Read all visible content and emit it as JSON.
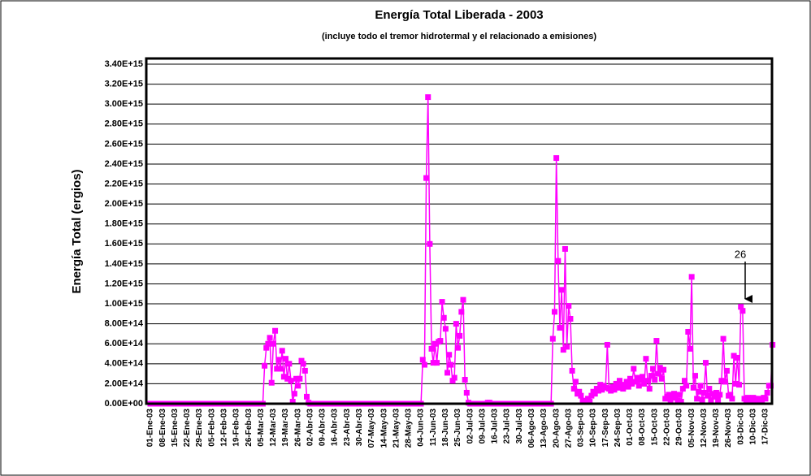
{
  "chart_data": {
    "type": "line",
    "title": "Energía Total Liberada - 2003",
    "subtitle": "(incluye todo el tremor hidrotermal y el relacionado a emisiones)",
    "y_label": "Energía Total (ergios)",
    "annotation": "26",
    "color": "#ff00ff",
    "grid": true,
    "ylim": [
      0,
      3400000000000000.0
    ],
    "yticks": [
      {
        "value": 0,
        "label": "0.00E+00"
      },
      {
        "value": 200000000000000.0,
        "label": "2.00E+14"
      },
      {
        "value": 400000000000000.0,
        "label": "4.00E+14"
      },
      {
        "value": 600000000000000.0,
        "label": "6.00E+14"
      },
      {
        "value": 800000000000000.0,
        "label": "8.00E+14"
      },
      {
        "value": 1000000000000000.0,
        "label": "1.00E+15"
      },
      {
        "value": 1200000000000000.0,
        "label": "1.20E+15"
      },
      {
        "value": 1400000000000000.0,
        "label": "1.40E+15"
      },
      {
        "value": 1600000000000000.0,
        "label": "1.60E+15"
      },
      {
        "value": 1800000000000000.0,
        "label": "1.80E+15"
      },
      {
        "value": 2000000000000000.0,
        "label": "2.00E+15"
      },
      {
        "value": 2200000000000000.0,
        "label": "2.20E+15"
      },
      {
        "value": 2400000000000000.0,
        "label": "2.40E+15"
      },
      {
        "value": 2600000000000000.0,
        "label": "2.60E+15"
      },
      {
        "value": 2800000000000000.0,
        "label": "2.80E+15"
      },
      {
        "value": 3000000000000000.0,
        "label": "3.00E+15"
      },
      {
        "value": 3200000000000000.0,
        "label": "3.20E+15"
      },
      {
        "value": 3400000000000000.0,
        "label": "3.40E+15"
      }
    ],
    "categories": [
      "01-Ene-03",
      null,
      null,
      null,
      null,
      null,
      null,
      "08-Ene-03",
      null,
      null,
      null,
      null,
      null,
      null,
      "15-Ene-03",
      null,
      null,
      null,
      null,
      null,
      null,
      "22-Ene-03",
      null,
      null,
      null,
      null,
      null,
      null,
      "29-Ene-03",
      null,
      null,
      null,
      null,
      null,
      null,
      "05-Feb-03",
      null,
      null,
      null,
      null,
      null,
      null,
      "12-Feb-03",
      null,
      null,
      null,
      null,
      null,
      null,
      "19-Feb-03",
      null,
      null,
      null,
      null,
      null,
      null,
      "26-Feb-03",
      null,
      null,
      null,
      null,
      null,
      null,
      "05-Mar-03",
      null,
      null,
      null,
      null,
      null,
      null,
      "12-Mar-03",
      null,
      null,
      null,
      null,
      null,
      null,
      "19-Mar-03",
      null,
      null,
      null,
      null,
      null,
      null,
      "26-Mar-03",
      null,
      null,
      null,
      null,
      null,
      null,
      "02-Abr-03",
      null,
      null,
      null,
      null,
      null,
      null,
      "09-Abr-03",
      null,
      null,
      null,
      null,
      null,
      null,
      "16-Abr-03",
      null,
      null,
      null,
      null,
      null,
      null,
      "23-Abr-03",
      null,
      null,
      null,
      null,
      null,
      null,
      "30-Abr-03",
      null,
      null,
      null,
      null,
      null,
      null,
      "07-May-03",
      null,
      null,
      null,
      null,
      null,
      null,
      "14-May-03",
      null,
      null,
      null,
      null,
      null,
      null,
      "21-May-03",
      null,
      null,
      null,
      null,
      null,
      null,
      "28-May-03",
      null,
      null,
      null,
      null,
      null,
      null,
      "04-Jun-03",
      null,
      null,
      null,
      null,
      null,
      null,
      "11-Jun-03",
      null,
      null,
      null,
      null,
      null,
      null,
      "18-Jun-03",
      null,
      null,
      null,
      null,
      null,
      null,
      "25-Jun-03",
      null,
      null,
      null,
      null,
      null,
      null,
      "02-Jul-03",
      null,
      null,
      null,
      null,
      null,
      null,
      "09-Jul-03",
      null,
      null,
      null,
      null,
      null,
      null,
      "16-Jul-03",
      null,
      null,
      null,
      null,
      null,
      null,
      "23-Jul-03",
      null,
      null,
      null,
      null,
      null,
      null,
      "30-Jul-03",
      null,
      null,
      null,
      null,
      null,
      null,
      "06-Ago-03",
      null,
      null,
      null,
      null,
      null,
      null,
      "13-Ago-03",
      null,
      null,
      null,
      null,
      null,
      null,
      "20-Ago-03",
      null,
      null,
      null,
      null,
      null,
      null,
      "27-Ago-03",
      null,
      null,
      null,
      null,
      null,
      null,
      "03-Sep-03",
      null,
      null,
      null,
      null,
      null,
      null,
      "10-Sep-03",
      null,
      null,
      null,
      null,
      null,
      null,
      "17-Sep-03",
      null,
      null,
      null,
      null,
      null,
      null,
      "24-Sep-03",
      null,
      null,
      null,
      null,
      null,
      null,
      "01-Oct-03",
      null,
      null,
      null,
      null,
      null,
      null,
      "08-Oct-03",
      null,
      null,
      null,
      null,
      null,
      null,
      "15-Oct-03",
      null,
      null,
      null,
      null,
      null,
      null,
      "22-Oct-03",
      null,
      null,
      null,
      null,
      null,
      null,
      "29-Oct-03",
      null,
      null,
      null,
      null,
      null,
      null,
      "05-Nov-03",
      null,
      null,
      null,
      null,
      null,
      null,
      "12-Nov-03",
      null,
      null,
      null,
      null,
      null,
      null,
      "19-Nov-03",
      null,
      null,
      null,
      null,
      null,
      null,
      "26-Nov-03",
      null,
      null,
      null,
      null,
      null,
      null,
      "03-Dic-03",
      null,
      null,
      null,
      null,
      null,
      null,
      "10-Dic-03",
      null,
      null,
      null,
      null,
      null,
      null,
      "17-Dic-03",
      null,
      null,
      null,
      null
    ],
    "values": [
      0,
      0,
      0,
      0,
      0,
      0,
      0,
      0,
      0,
      0,
      0,
      0,
      0,
      0,
      0,
      0,
      0,
      0,
      0,
      0,
      0,
      0,
      0,
      0,
      0,
      0,
      0,
      0,
      0,
      0,
      0,
      0,
      0,
      0,
      0,
      0,
      0,
      0,
      0,
      0,
      0,
      0,
      0,
      0,
      0,
      0,
      0,
      0,
      0,
      0,
      0,
      0,
      0,
      0,
      0,
      0,
      0,
      0,
      0,
      0,
      0,
      0,
      0,
      0,
      0,
      380000000000000.0,
      560000000000000.0,
      600000000000000.0,
      660000000000000.0,
      210000000000000.0,
      600000000000000.0,
      730000000000000.0,
      350000000000000.0,
      440000000000000.0,
      350000000000000.0,
      530000000000000.0,
      270000000000000.0,
      450000000000000.0,
      250000000000000.0,
      400000000000000.0,
      230000000000000.0,
      20000000000000.0,
      100000000000000.0,
      250000000000000.0,
      180000000000000.0,
      250000000000000.0,
      430000000000000.0,
      400000000000000.0,
      330000000000000.0,
      70000000000000.0,
      10000000000000.0,
      0,
      0,
      0,
      0,
      0,
      0,
      0,
      0,
      0,
      0,
      0,
      0,
      0,
      0,
      0,
      0,
      0,
      0,
      0,
      0,
      0,
      0,
      0,
      0,
      0,
      0,
      0,
      0,
      0,
      0,
      0,
      0,
      0,
      0,
      0,
      0,
      0,
      0,
      0,
      0,
      0,
      0,
      0,
      0,
      0,
      0,
      0,
      0,
      0,
      0,
      0,
      0,
      0,
      0,
      0,
      0,
      0,
      0,
      0,
      0,
      0,
      0,
      0,
      0,
      440000000000000.0,
      390000000000000.0,
      2260000000000000.0,
      3070000000000000.0,
      1600000000000000.0,
      550000000000000.0,
      410000000000000.0,
      600000000000000.0,
      410000000000000.0,
      620000000000000.0,
      630000000000000.0,
      1020000000000000.0,
      860000000000000.0,
      750000000000000.0,
      310000000000000.0,
      490000000000000.0,
      390000000000000.0,
      230000000000000.0,
      260000000000000.0,
      800000000000000.0,
      560000000000000.0,
      680000000000000.0,
      920000000000000.0,
      1040000000000000.0,
      240000000000000.0,
      110000000000000.0,
      10000000000000.0,
      0,
      0,
      0,
      0,
      0,
      0,
      0,
      0,
      0,
      0,
      10000000000000.0,
      10000000000000.0,
      0,
      0,
      0,
      0,
      0,
      0,
      0,
      0,
      0,
      0,
      0,
      0,
      0,
      0,
      0,
      0,
      0,
      0,
      0,
      0,
      0,
      0,
      0,
      0,
      0,
      0,
      0,
      0,
      0,
      0,
      0,
      0,
      0,
      0,
      0,
      650000000000000.0,
      920000000000000.0,
      2460000000000000.0,
      1430000000000000.0,
      760000000000000.0,
      1140000000000000.0,
      540000000000000.0,
      1550000000000000.0,
      570000000000000.0,
      980000000000000.0,
      850000000000000.0,
      330000000000000.0,
      150000000000000.0,
      220000000000000.0,
      100000000000000.0,
      120000000000000.0,
      80000000000000.0,
      30000000000000.0,
      20000000000000.0,
      30000000000000.0,
      50000000000000.0,
      20000000000000.0,
      80000000000000.0,
      120000000000000.0,
      100000000000000.0,
      150000000000000.0,
      130000000000000.0,
      190000000000000.0,
      140000000000000.0,
      180000000000000.0,
      160000000000000.0,
      590000000000000.0,
      150000000000000.0,
      130000000000000.0,
      170000000000000.0,
      140000000000000.0,
      200000000000000.0,
      160000000000000.0,
      230000000000000.0,
      190000000000000.0,
      150000000000000.0,
      180000000000000.0,
      220000000000000.0,
      170000000000000.0,
      250000000000000.0,
      200000000000000.0,
      350000000000000.0,
      220000000000000.0,
      260000000000000.0,
      180000000000000.0,
      240000000000000.0,
      270000000000000.0,
      200000000000000.0,
      450000000000000.0,
      230000000000000.0,
      150000000000000.0,
      280000000000000.0,
      350000000000000.0,
      240000000000000.0,
      630000000000000.0,
      300000000000000.0,
      360000000000000.0,
      250000000000000.0,
      340000000000000.0,
      50000000000000.0,
      70000000000000.0,
      90000000000000.0,
      40000000000000.0,
      80000000000000.0,
      100000000000000.0,
      60000000000000.0,
      30000000000000.0,
      90000000000000.0,
      20000000000000.0,
      150000000000000.0,
      230000000000000.0,
      180000000000000.0,
      720000000000000.0,
      550000000000000.0,
      1270000000000000.0,
      160000000000000.0,
      280000000000000.0,
      50000000000000.0,
      120000000000000.0,
      180000000000000.0,
      40000000000000.0,
      110000000000000.0,
      410000000000000.0,
      80000000000000.0,
      150000000000000.0,
      30000000000000.0,
      100000000000000.0,
      70000000000000.0,
      110000000000000.0,
      40000000000000.0,
      90000000000000.0,
      230000000000000.0,
      650000000000000.0,
      220000000000000.0,
      330000000000000.0,
      80000000000000.0,
      90000000000000.0,
      50000000000000.0,
      480000000000000.0,
      200000000000000.0,
      460000000000000.0,
      190000000000000.0,
      970000000000000.0,
      930000000000000.0,
      50000000000000.0,
      40000000000000.0,
      60000000000000.0,
      50000000000000.0,
      40000000000000.0,
      60000000000000.0,
      50000000000000.0,
      30000000000000.0,
      50000000000000.0,
      40000000000000.0,
      20000000000000.0,
      60000000000000.0,
      50000000000000.0,
      110000000000000.0,
      180000000000000.0,
      180000000000000.0,
      590000000000000.0
    ]
  }
}
